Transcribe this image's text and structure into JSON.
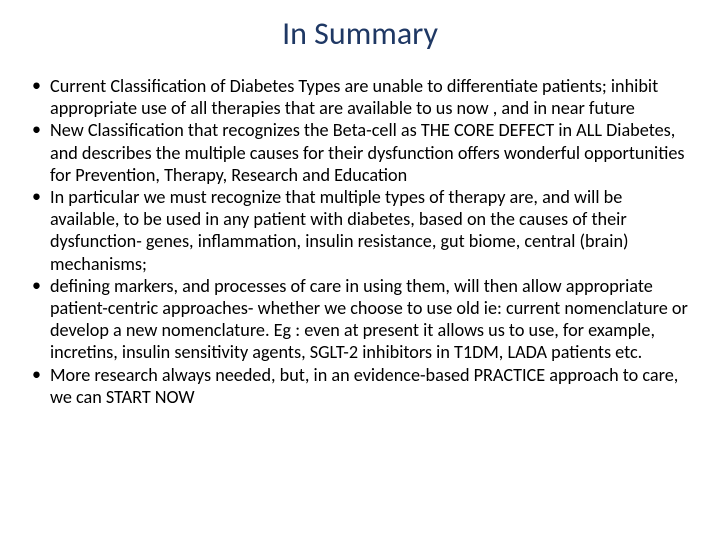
{
  "slide": {
    "title": "In Summary",
    "title_color": "#1f3864",
    "title_fontsize": 32,
    "body_fontsize": 18.2,
    "body_color": "#000000",
    "background_color": "#ffffff",
    "bullets": [
      "Current Classification of Diabetes Types  are unable to differentiate patients; inhibit appropriate use of all therapies that are available to us now , and in near future",
      "New Classification that recognizes the Beta-cell as THE CORE DEFECT in ALL Diabetes, and describes the multiple causes for their dysfunction offers wonderful opportunities for  Prevention, Therapy, Research and Education",
      "In particular we must recognize that multiple types of therapy are, and will be available, to be used in any patient with diabetes, based on the causes of their dysfunction- genes, inflammation, insulin resistance, gut biome, central (brain) mechanisms;",
      "defining markers, and processes of care in using them, will then allow appropriate patient-centric approaches- whether we choose to use old ie: current nomenclature or develop a new nomenclature. Eg : even at present it allows us to use, for example, incretins, insulin sensitivity agents, SGLT-2 inhibitors in T1DM, LADA patients etc.",
      "More research always needed, but, in an evidence-based PRACTICE approach to care, we can START NOW"
    ]
  }
}
